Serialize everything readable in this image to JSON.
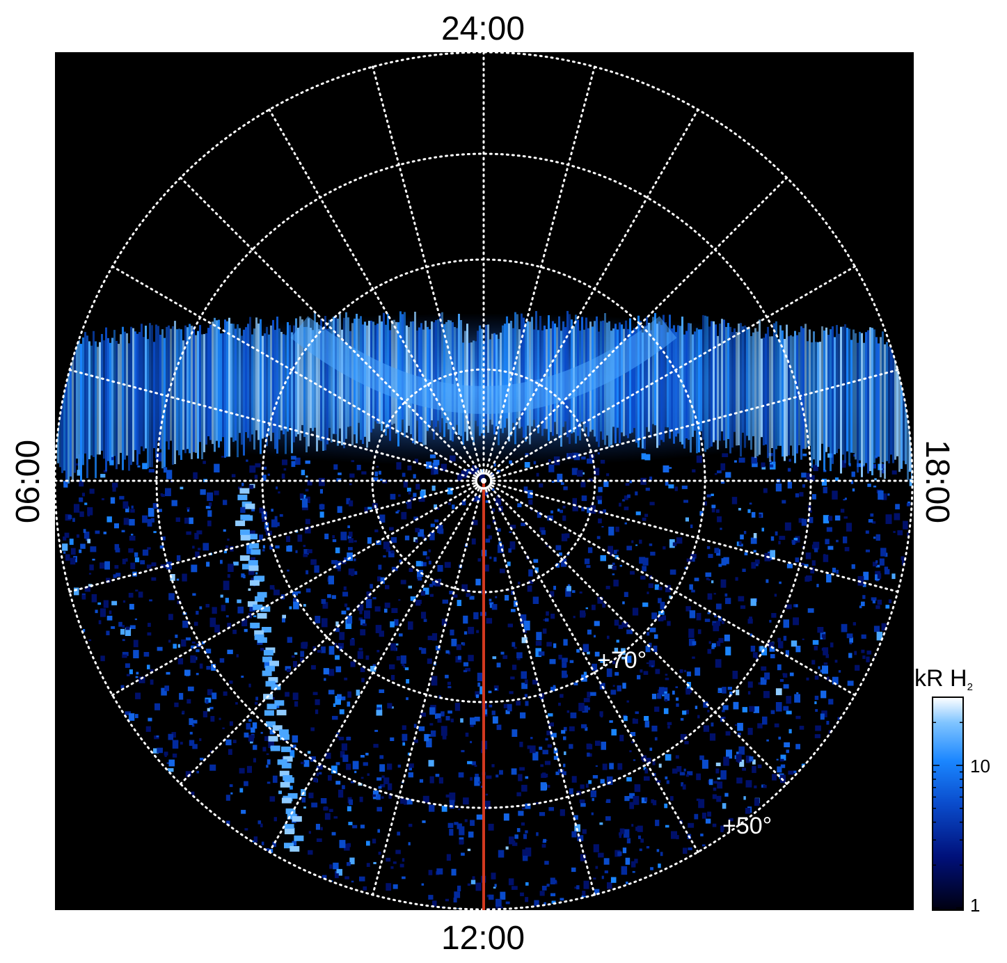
{
  "figure": {
    "local_time_labels": {
      "top": "24:00",
      "bottom": "12:00",
      "left": "06:00",
      "right": "18:00"
    },
    "latitude_labels": [
      "+70°",
      "+50°"
    ],
    "colorbar": {
      "title": "kR H",
      "title_subscript": "2",
      "tick_labels": [
        "10",
        "1"
      ],
      "scale": "log",
      "colors": [
        "#000010",
        "#00107a",
        "#0a4ccc",
        "#1a86ff",
        "#7fc4ff",
        "#ffffff"
      ]
    },
    "background_color": "#000000",
    "grid_color": "#ffffff",
    "meridian_line_color": "#d2391f"
  }
}
